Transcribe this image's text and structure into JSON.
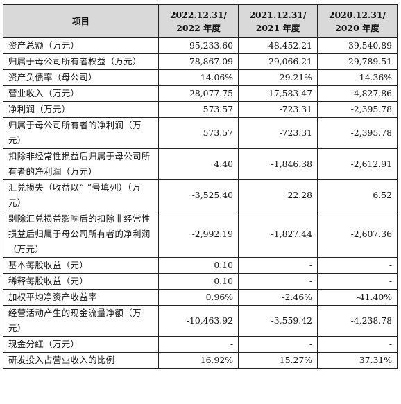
{
  "table": {
    "headers": [
      "项目",
      "2022.12.31/\n2022 年度",
      "2021.12.31/\n2021 年度",
      "2020.12.31/\n2020 年度"
    ],
    "rows": [
      {
        "label": "资产总额（万元）",
        "values": [
          "95,233.60",
          "48,452.21",
          "39,540.89"
        ],
        "lines": 1
      },
      {
        "label": "归属于母公司所有者权益（万元）",
        "values": [
          "78,867.09",
          "29,066.21",
          "29,789.51"
        ],
        "lines": 1
      },
      {
        "label": "资产负债率（母公司）",
        "values": [
          "14.06%",
          "29.21%",
          "14.36%"
        ],
        "lines": 1
      },
      {
        "label": "营业收入（万元）",
        "values": [
          "28,077.75",
          "17,583.47",
          "4,827.86"
        ],
        "lines": 1
      },
      {
        "label": "净利润（万元）",
        "values": [
          "573.57",
          "-723.31",
          "-2,395.78"
        ],
        "lines": 1
      },
      {
        "label": "归属于母公司所有者的净利润（万元）",
        "values": [
          "573.57",
          "-723.31",
          "-2,395.78"
        ],
        "lines": 2
      },
      {
        "label": "扣除非经常性损益后归属于母公司所有者的净利润（万元）",
        "values": [
          "4.40",
          "-1,846.38",
          "-2,612.91"
        ],
        "lines": 2
      },
      {
        "label": "汇兑损失（收益以“-”号填列）（万元）",
        "values": [
          "-3,525.40",
          "22.28",
          "6.52"
        ],
        "lines": 2
      },
      {
        "label": "剔除汇兑损益影响后的扣除非经常性损益后归属于母公司所有者的净利润（万元）",
        "values": [
          "-2,992.19",
          "-1,827.44",
          "-2,607.36"
        ],
        "lines": 3
      },
      {
        "label": "基本每股收益（元）",
        "values": [
          "0.10",
          "-",
          "-"
        ],
        "lines": 1
      },
      {
        "label": "稀释每股收益（元）",
        "values": [
          "0.10",
          "-",
          "-"
        ],
        "lines": 1
      },
      {
        "label": "加权平均净资产收益率",
        "values": [
          "0.96%",
          "-2.46%",
          "-41.40%"
        ],
        "lines": 1
      },
      {
        "label": "经营活动产生的现金流量净额（万元）",
        "values": [
          "-10,463.92",
          "-3,559.42",
          "-4,238.78"
        ],
        "lines": 2
      },
      {
        "label": "现金分红（万元）",
        "values": [
          "-",
          "-",
          "-"
        ],
        "lines": 1
      },
      {
        "label": "研发投入占营业收入的比例",
        "values": [
          "16.92%",
          "15.27%",
          "37.31%"
        ],
        "lines": 1
      }
    ]
  }
}
